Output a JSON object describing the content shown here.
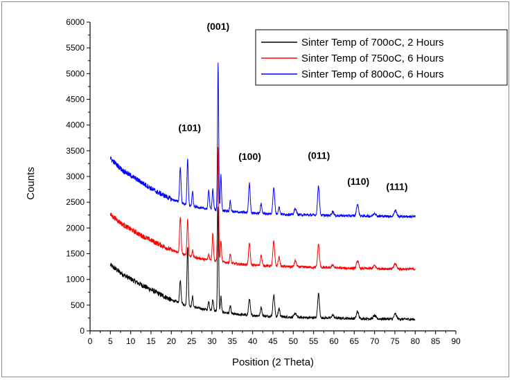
{
  "chart_data": {
    "type": "line",
    "xlabel": "Position (2 Theta)",
    "ylabel": "Counts",
    "xlim": [
      0,
      90
    ],
    "ylim": [
      0,
      6000
    ],
    "x_ticks": [
      0,
      5,
      10,
      15,
      20,
      25,
      30,
      35,
      40,
      45,
      50,
      55,
      60,
      65,
      70,
      75,
      80,
      85,
      90
    ],
    "y_ticks": [
      0,
      500,
      1000,
      1500,
      2000,
      2500,
      3000,
      3500,
      4000,
      4500,
      5000,
      5500,
      6000
    ],
    "grid": false,
    "legend_position": "top-right",
    "annotations": [
      {
        "text": "(001)",
        "x": 31.5,
        "y": 5850
      },
      {
        "text": "(101)",
        "x": 24.5,
        "y": 3880
      },
      {
        "text": "(100)",
        "x": 39.3,
        "y": 3320
      },
      {
        "text": "(011)",
        "x": 56.3,
        "y": 3340
      },
      {
        "text": "(110)",
        "x": 66.0,
        "y": 2840
      },
      {
        "text": "(111)",
        "x": 75.5,
        "y": 2740
      }
    ],
    "peaks": [
      {
        "x": 22.2,
        "w": 0.18,
        "h": [
          430,
          700,
          680
        ]
      },
      {
        "x": 24.0,
        "w": 0.16,
        "h": [
          1150,
          720,
          900
        ]
      },
      {
        "x": 25.2,
        "w": 0.15,
        "h": [
          200,
          120,
          280
        ]
      },
      {
        "x": 29.2,
        "w": 0.16,
        "h": [
          160,
          110,
          380
        ]
      },
      {
        "x": 30.2,
        "w": 0.16,
        "h": [
          230,
          540,
          400
        ]
      },
      {
        "x": 31.5,
        "w": 0.14,
        "h": [
          2050,
          2200,
          2850
        ]
      },
      {
        "x": 32.2,
        "w": 0.14,
        "h": [
          300,
          400,
          700
        ]
      },
      {
        "x": 34.5,
        "w": 0.15,
        "h": [
          150,
          180,
          200
        ]
      },
      {
        "x": 39.2,
        "w": 0.2,
        "h": [
          320,
          420,
          570
        ]
      },
      {
        "x": 42.1,
        "w": 0.18,
        "h": [
          170,
          200,
          190
        ]
      },
      {
        "x": 45.2,
        "w": 0.22,
        "h": [
          420,
          480,
          520
        ]
      },
      {
        "x": 46.5,
        "w": 0.2,
        "h": [
          160,
          180,
          140
        ]
      },
      {
        "x": 50.5,
        "w": 0.25,
        "h": [
          80,
          120,
          120
        ]
      },
      {
        "x": 56.2,
        "w": 0.22,
        "h": [
          470,
          460,
          580
        ]
      },
      {
        "x": 59.7,
        "w": 0.25,
        "h": [
          60,
          60,
          80
        ]
      },
      {
        "x": 65.8,
        "w": 0.25,
        "h": [
          140,
          150,
          230
        ]
      },
      {
        "x": 70.0,
        "w": 0.3,
        "h": [
          60,
          60,
          60
        ]
      },
      {
        "x": 75.1,
        "w": 0.3,
        "h": [
          100,
          100,
          120
        ]
      }
    ],
    "series": [
      {
        "name": "Sinter Temp of 700oC, 2 Hours",
        "color": "#000000",
        "baseline": [
          [
            5,
            1280
          ],
          [
            8,
            1100
          ],
          [
            12,
            920
          ],
          [
            16,
            760
          ],
          [
            20,
            600
          ],
          [
            24,
            490
          ],
          [
            28,
            420
          ],
          [
            32,
            370
          ],
          [
            36,
            320
          ],
          [
            40,
            300
          ],
          [
            45,
            280
          ],
          [
            50,
            265
          ],
          [
            55,
            255
          ],
          [
            60,
            250
          ],
          [
            65,
            240
          ],
          [
            70,
            235
          ],
          [
            75,
            230
          ],
          [
            80,
            225
          ]
        ]
      },
      {
        "name": "Sinter Temp of 750oC, 6 Hours",
        "color": "#ff0000",
        "baseline": [
          [
            5,
            2260
          ],
          [
            8,
            2070
          ],
          [
            12,
            1880
          ],
          [
            16,
            1720
          ],
          [
            20,
            1570
          ],
          [
            24,
            1460
          ],
          [
            28,
            1390
          ],
          [
            32,
            1350
          ],
          [
            36,
            1300
          ],
          [
            40,
            1280
          ],
          [
            45,
            1260
          ],
          [
            50,
            1245
          ],
          [
            55,
            1235
          ],
          [
            60,
            1225
          ],
          [
            65,
            1215
          ],
          [
            70,
            1210
          ],
          [
            75,
            1205
          ],
          [
            80,
            1200
          ]
        ]
      },
      {
        "name": "Sinter Temp of 800oC, 6 Hours",
        "color": "#0000ff",
        "baseline": [
          [
            5,
            3350
          ],
          [
            8,
            3120
          ],
          [
            12,
            2920
          ],
          [
            16,
            2720
          ],
          [
            20,
            2560
          ],
          [
            24,
            2440
          ],
          [
            28,
            2380
          ],
          [
            32,
            2340
          ],
          [
            36,
            2310
          ],
          [
            40,
            2290
          ],
          [
            45,
            2270
          ],
          [
            50,
            2260
          ],
          [
            55,
            2250
          ],
          [
            60,
            2240
          ],
          [
            65,
            2235
          ],
          [
            70,
            2230
          ],
          [
            75,
            2225
          ],
          [
            80,
            2220
          ]
        ]
      }
    ]
  }
}
